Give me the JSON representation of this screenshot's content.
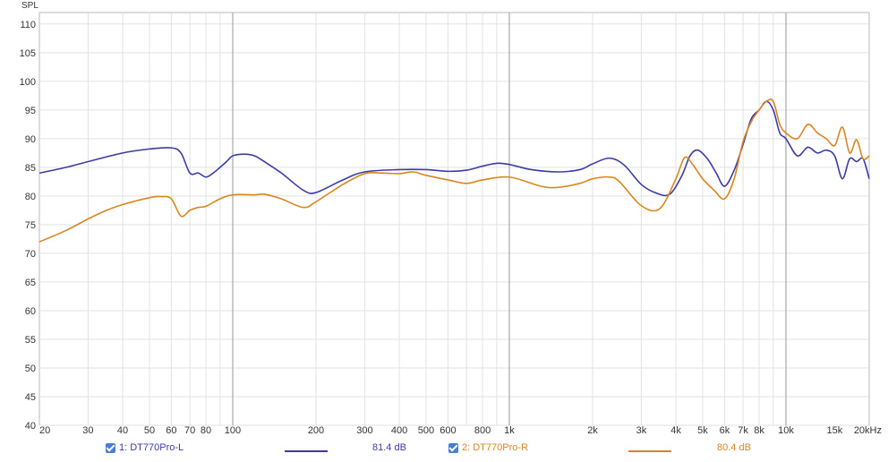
{
  "chart_data": {
    "type": "line",
    "ylabel": "SPL",
    "xscale": "log",
    "xlim": [
      20,
      20000
    ],
    "ylim": [
      40,
      112
    ],
    "yticks": [
      40,
      45,
      50,
      55,
      60,
      65,
      70,
      75,
      80,
      85,
      90,
      95,
      100,
      105,
      110
    ],
    "xticks": [
      {
        "v": 20,
        "label": "20"
      },
      {
        "v": 30,
        "label": "30"
      },
      {
        "v": 40,
        "label": "40"
      },
      {
        "v": 50,
        "label": "50"
      },
      {
        "v": 60,
        "label": "60"
      },
      {
        "v": 70,
        "label": "70"
      },
      {
        "v": 80,
        "label": "80"
      },
      {
        "v": 100,
        "label": "100"
      },
      {
        "v": 200,
        "label": "200"
      },
      {
        "v": 300,
        "label": "300"
      },
      {
        "v": 400,
        "label": "400"
      },
      {
        "v": 500,
        "label": "500"
      },
      {
        "v": 600,
        "label": "600"
      },
      {
        "v": 800,
        "label": "800"
      },
      {
        "v": 1000,
        "label": "1k"
      },
      {
        "v": 2000,
        "label": "2k"
      },
      {
        "v": 3000,
        "label": "3k"
      },
      {
        "v": 4000,
        "label": "4k"
      },
      {
        "v": 5000,
        "label": "5k"
      },
      {
        "v": 6000,
        "label": "6k"
      },
      {
        "v": 7000,
        "label": "7k"
      },
      {
        "v": 8000,
        "label": "8k"
      },
      {
        "v": 10000,
        "label": "10k"
      },
      {
        "v": 15000,
        "label": "15k"
      },
      {
        "v": 20000,
        "label": "20kHz"
      }
    ],
    "grid": true,
    "legend_position": "bottom",
    "series": [
      {
        "name": "1: DT770Pro-L",
        "value": "81.4 dB",
        "color": "#3b3ba8",
        "x": [
          20,
          25,
          30,
          40,
          50,
          60,
          65,
          70,
          75,
          80,
          85,
          90,
          95,
          100,
          110,
          120,
          130,
          150,
          180,
          200,
          250,
          300,
          400,
          500,
          600,
          700,
          800,
          900,
          1000,
          1200,
          1500,
          1800,
          2000,
          2300,
          2600,
          3000,
          3400,
          3800,
          4200,
          4500,
          4800,
          5200,
          5600,
          6000,
          6500,
          7000,
          7500,
          8000,
          8500,
          9000,
          9500,
          10000,
          11000,
          12000,
          13000,
          14000,
          15000,
          16000,
          17000,
          18000,
          19000,
          20000
        ],
        "y": [
          84,
          85,
          86,
          87.5,
          88.2,
          88.4,
          87.5,
          84,
          84,
          83.3,
          84,
          85,
          86,
          87,
          87.3,
          87,
          86,
          84,
          81,
          80.6,
          82.8,
          84.2,
          84.6,
          84.6,
          84.3,
          84.5,
          85.2,
          85.7,
          85.5,
          84.6,
          84.2,
          84.6,
          85.6,
          86.6,
          85.4,
          82,
          80.5,
          80.3,
          83.5,
          87,
          88,
          86.5,
          84,
          81.7,
          84.5,
          89,
          93.5,
          95,
          96.5,
          95,
          91,
          90,
          87,
          88.5,
          87.5,
          88,
          87,
          83,
          86.5,
          86,
          86.5,
          83
        ]
      },
      {
        "name": "2: DT770Pro-R",
        "value": "80.4 dB",
        "color": "#d9861e",
        "x": [
          20,
          25,
          30,
          35,
          40,
          50,
          55,
          60,
          65,
          70,
          75,
          80,
          90,
          100,
          120,
          130,
          150,
          180,
          200,
          250,
          300,
          350,
          400,
          450,
          500,
          600,
          700,
          800,
          1000,
          1300,
          1500,
          1800,
          2000,
          2300,
          2500,
          3000,
          3500,
          4000,
          4300,
          4600,
          5000,
          5500,
          6000,
          6500,
          7000,
          7500,
          8000,
          8500,
          9000,
          9500,
          10000,
          11000,
          12000,
          13000,
          14000,
          15000,
          16000,
          17000,
          18000,
          19000,
          20000
        ],
        "y": [
          72,
          74,
          76,
          77.5,
          78.5,
          79.7,
          79.9,
          79.5,
          76.5,
          77.5,
          78,
          78.2,
          79.5,
          80.2,
          80.2,
          80.3,
          79.5,
          78,
          79,
          82,
          83.9,
          84,
          83.9,
          84.2,
          83.6,
          82.8,
          82.2,
          82.8,
          83.3,
          81.7,
          81.5,
          82.2,
          83,
          83.3,
          82.5,
          78.3,
          77.8,
          83,
          86.7,
          85.5,
          83,
          81,
          79.5,
          83,
          89.5,
          93,
          95,
          96.5,
          96.5,
          92.5,
          91,
          90,
          92.5,
          91,
          90,
          88.8,
          92,
          87.5,
          89.8,
          86.5,
          87
        ]
      }
    ]
  }
}
